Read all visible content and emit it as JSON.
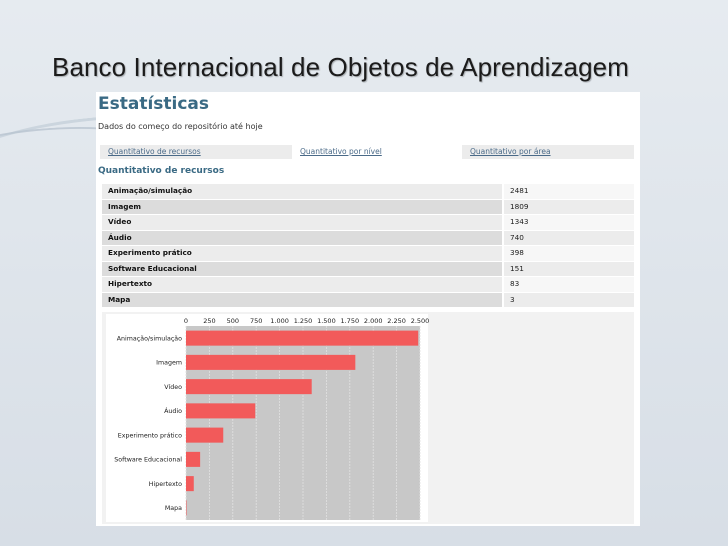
{
  "slide": {
    "title": "Banco Internacional de Objetos de Aprendizagem"
  },
  "page": {
    "heading": "Estatísticas",
    "subtitle": "Dados do começo do repositório até hoje",
    "tabs": [
      {
        "label": "Quantitativo de recursos"
      },
      {
        "label": "Quantitativo por nível"
      },
      {
        "label": "Quantitativo por área"
      }
    ],
    "section_title": "Quantitativo de recursos"
  },
  "stats": [
    {
      "label": "Animação/simulação",
      "value": "2481"
    },
    {
      "label": "Imagem",
      "value": "1809"
    },
    {
      "label": "Vídeo",
      "value": "1343"
    },
    {
      "label": "Áudio",
      "value": "740"
    },
    {
      "label": "Experimento prático",
      "value": "398"
    },
    {
      "label": "Software Educacional",
      "value": "151"
    },
    {
      "label": "Hipertexto",
      "value": "83"
    },
    {
      "label": "Mapa",
      "value": "3"
    }
  ],
  "colors": {
    "bar": "#f25a5a",
    "plot_bg": "#c8c8c8",
    "heading": "#3a6a84"
  },
  "chart_data": {
    "type": "bar",
    "orientation": "horizontal",
    "categories": [
      "Animação/simulação",
      "Imagem",
      "Vídeo",
      "Áudio",
      "Experimento prático",
      "Software Educacional",
      "Hipertexto",
      "Mapa"
    ],
    "values": [
      2481,
      1809,
      1343,
      740,
      398,
      151,
      83,
      3
    ],
    "xlim": [
      0,
      2500
    ],
    "ticks": [
      0,
      250,
      500,
      750,
      1000,
      1250,
      1500,
      1750,
      2000,
      2250,
      2500
    ],
    "tick_labels": [
      "0",
      "250",
      "500",
      "750",
      "1.000",
      "1.250",
      "1.500",
      "1.750",
      "2.000",
      "2.250",
      "2.500"
    ],
    "grid": true,
    "title": "",
    "xlabel": "",
    "ylabel": ""
  }
}
